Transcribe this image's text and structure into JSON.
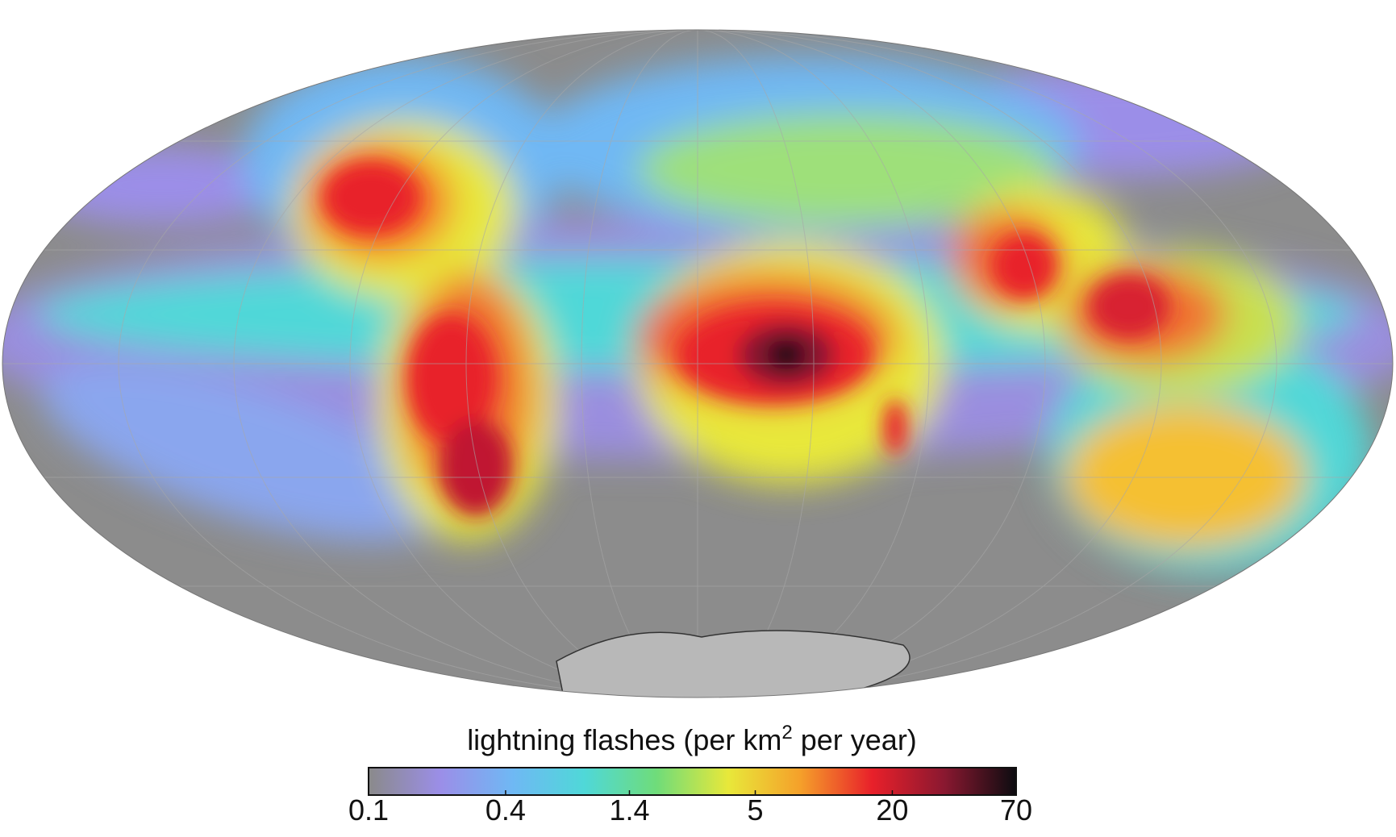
{
  "colorbar": {
    "title": "lightning flashes (per km",
    "title_superscript": "2",
    "title_end": " per year)",
    "scale": "log",
    "lim": [
      0.1,
      70
    ],
    "ticks": [
      0.1,
      0.4,
      1.4,
      5,
      20,
      70
    ],
    "colors": [
      "#8a8a8a",
      "#9b8ee8",
      "#6fb8f4",
      "#4fd8d8",
      "#6fdc7a",
      "#e8e83a",
      "#f5a02a",
      "#e8202a",
      "#8a1830",
      "#0c0c10"
    ]
  }
}
